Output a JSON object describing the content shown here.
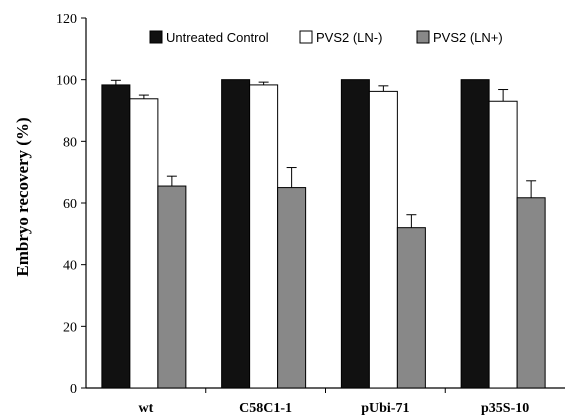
{
  "chart_data": {
    "type": "bar",
    "title": "",
    "xlabel": "",
    "ylabel": "Embryo recovery (%)",
    "ylim": [
      0,
      120
    ],
    "yticks": [
      0,
      20,
      40,
      60,
      80,
      100,
      120
    ],
    "categories": [
      "wt",
      "C58C1-1",
      "pUbi-71",
      "p35S-10"
    ],
    "series": [
      {
        "name": "Untreated Control",
        "color": "#111111",
        "values": [
          98.3,
          100,
          100,
          100
        ],
        "errors": [
          1.5,
          0,
          0,
          0
        ]
      },
      {
        "name": "PVS2 (LN-)",
        "color": "#ffffff",
        "values": [
          93.8,
          98.3,
          96.2,
          93
        ],
        "errors": [
          1.2,
          0.9,
          1.8,
          3.8
        ]
      },
      {
        "name": "PVS2 (LN+)",
        "color": "#888888",
        "values": [
          65.5,
          65,
          52,
          61.7
        ],
        "errors": [
          3.2,
          6.5,
          4.2,
          5.5
        ]
      }
    ],
    "legend": "top",
    "grid": false,
    "error_bars": true
  }
}
